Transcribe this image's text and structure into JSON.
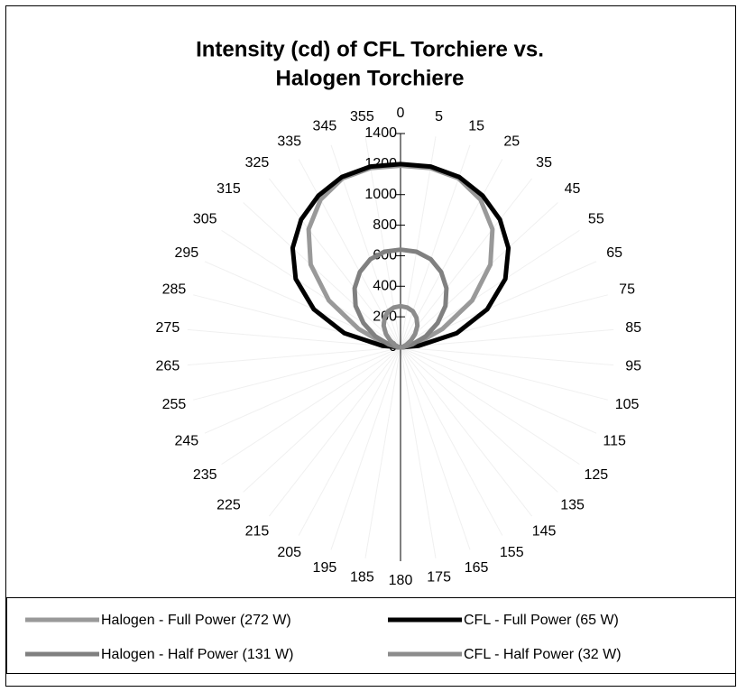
{
  "chart_data": {
    "type": "radar",
    "title": [
      "Intensity (cd) of CFL Torchiere vs.",
      "Halogen Torchiere"
    ],
    "categories": [
      "0",
      "5",
      "15",
      "25",
      "35",
      "45",
      "55",
      "65",
      "75",
      "85",
      "95",
      "105",
      "115",
      "125",
      "135",
      "145",
      "155",
      "165",
      "175",
      "180",
      "185",
      "195",
      "205",
      "215",
      "225",
      "235",
      "245",
      "255",
      "265",
      "275",
      "285",
      "295",
      "305",
      "315",
      "325",
      "335",
      "345",
      "355"
    ],
    "ylim": [
      0,
      1400
    ],
    "yticks": [
      0,
      200,
      400,
      600,
      800,
      1000,
      1200,
      1400
    ],
    "series": [
      {
        "name": "Halogen - Full Power (272 W)",
        "color": "#999999",
        "values": [
          1190,
          1190,
          1170,
          1100,
          980,
          800,
          560,
          300,
          120,
          30,
          0,
          0,
          0,
          0,
          0,
          0,
          0,
          0,
          0,
          0,
          0,
          0,
          0,
          0,
          0,
          0,
          0,
          0,
          0,
          30,
          120,
          300,
          560,
          800,
          980,
          1100,
          1170,
          1190
        ]
      },
      {
        "name": "CFL - Full Power (65 W)",
        "color": "#000000",
        "values": [
          1200,
          1200,
          1180,
          1130,
          1060,
          960,
          820,
          620,
          380,
          120,
          0,
          0,
          0,
          0,
          0,
          0,
          0,
          0,
          0,
          0,
          0,
          0,
          0,
          0,
          0,
          0,
          0,
          0,
          0,
          120,
          380,
          620,
          820,
          960,
          1060,
          1130,
          1180,
          1200
        ]
      },
      {
        "name": "Halogen - Half Power (131 W)",
        "color": "#808080",
        "values": [
          640,
          635,
          610,
          560,
          490,
          400,
          290,
          180,
          80,
          20,
          0,
          0,
          0,
          0,
          0,
          0,
          0,
          0,
          0,
          0,
          0,
          0,
          0,
          0,
          0,
          0,
          0,
          0,
          0,
          20,
          80,
          180,
          290,
          400,
          490,
          560,
          610,
          635
        ]
      },
      {
        "name": "CFL - Half Power (32 W)",
        "color": "#8c8c8c",
        "values": [
          270,
          265,
          250,
          220,
          180,
          130,
          80,
          40,
          15,
          5,
          0,
          0,
          0,
          0,
          0,
          0,
          0,
          0,
          0,
          0,
          0,
          0,
          0,
          0,
          0,
          0,
          0,
          0,
          0,
          5,
          15,
          40,
          80,
          130,
          180,
          220,
          250,
          265
        ]
      }
    ]
  }
}
